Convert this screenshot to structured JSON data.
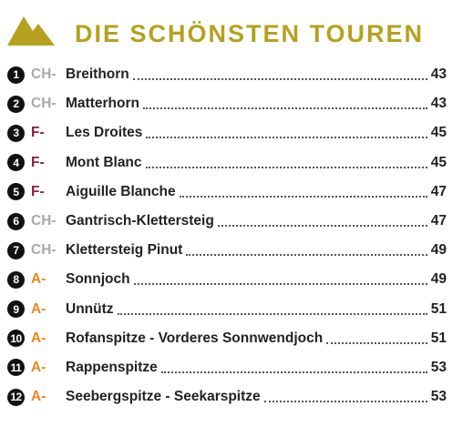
{
  "header": {
    "title": "DIE SCHÖNSTEN TOUREN"
  },
  "entries": [
    {
      "number": 1,
      "country": "CH-",
      "color": "#a9a9a9",
      "name": "Breithorn",
      "page": 43
    },
    {
      "number": 2,
      "country": "CH-",
      "color": "#a9a9a9",
      "name": "Matterhorn",
      "page": 43
    },
    {
      "number": 3,
      "country": "F-",
      "color": "#8e1f45",
      "name": "Les Droites",
      "page": 45
    },
    {
      "number": 4,
      "country": "F-",
      "color": "#8e1f45",
      "name": "Mont Blanc",
      "page": 45
    },
    {
      "number": 5,
      "country": "F-",
      "color": "#8e1f45",
      "name": "Aiguille Blanche",
      "page": 47
    },
    {
      "number": 6,
      "country": "CH-",
      "color": "#a9a9a9",
      "name": "Gantrisch-Klettersteig",
      "page": 47
    },
    {
      "number": 7,
      "country": "CH-",
      "color": "#a9a9a9",
      "name": "Klettersteig Pinut",
      "page": 49
    },
    {
      "number": 8,
      "country": "A-",
      "color": "#e8891e",
      "name": "Sonnjoch",
      "page": 49
    },
    {
      "number": 9,
      "country": "A-",
      "color": "#e8891e",
      "name": "Unnütz",
      "page": 51
    },
    {
      "number": 10,
      "country": "A-",
      "color": "#e8891e",
      "name": "Rofanspitze - Vorderes Sonnwendjoch",
      "page": 51
    },
    {
      "number": 11,
      "country": "A-",
      "color": "#e8891e",
      "name": "Rappenspitze",
      "page": 53
    },
    {
      "number": 12,
      "country": "A-",
      "color": "#e8891e",
      "name": "Seebergspitze - Seekarspitze",
      "page": 53
    }
  ]
}
